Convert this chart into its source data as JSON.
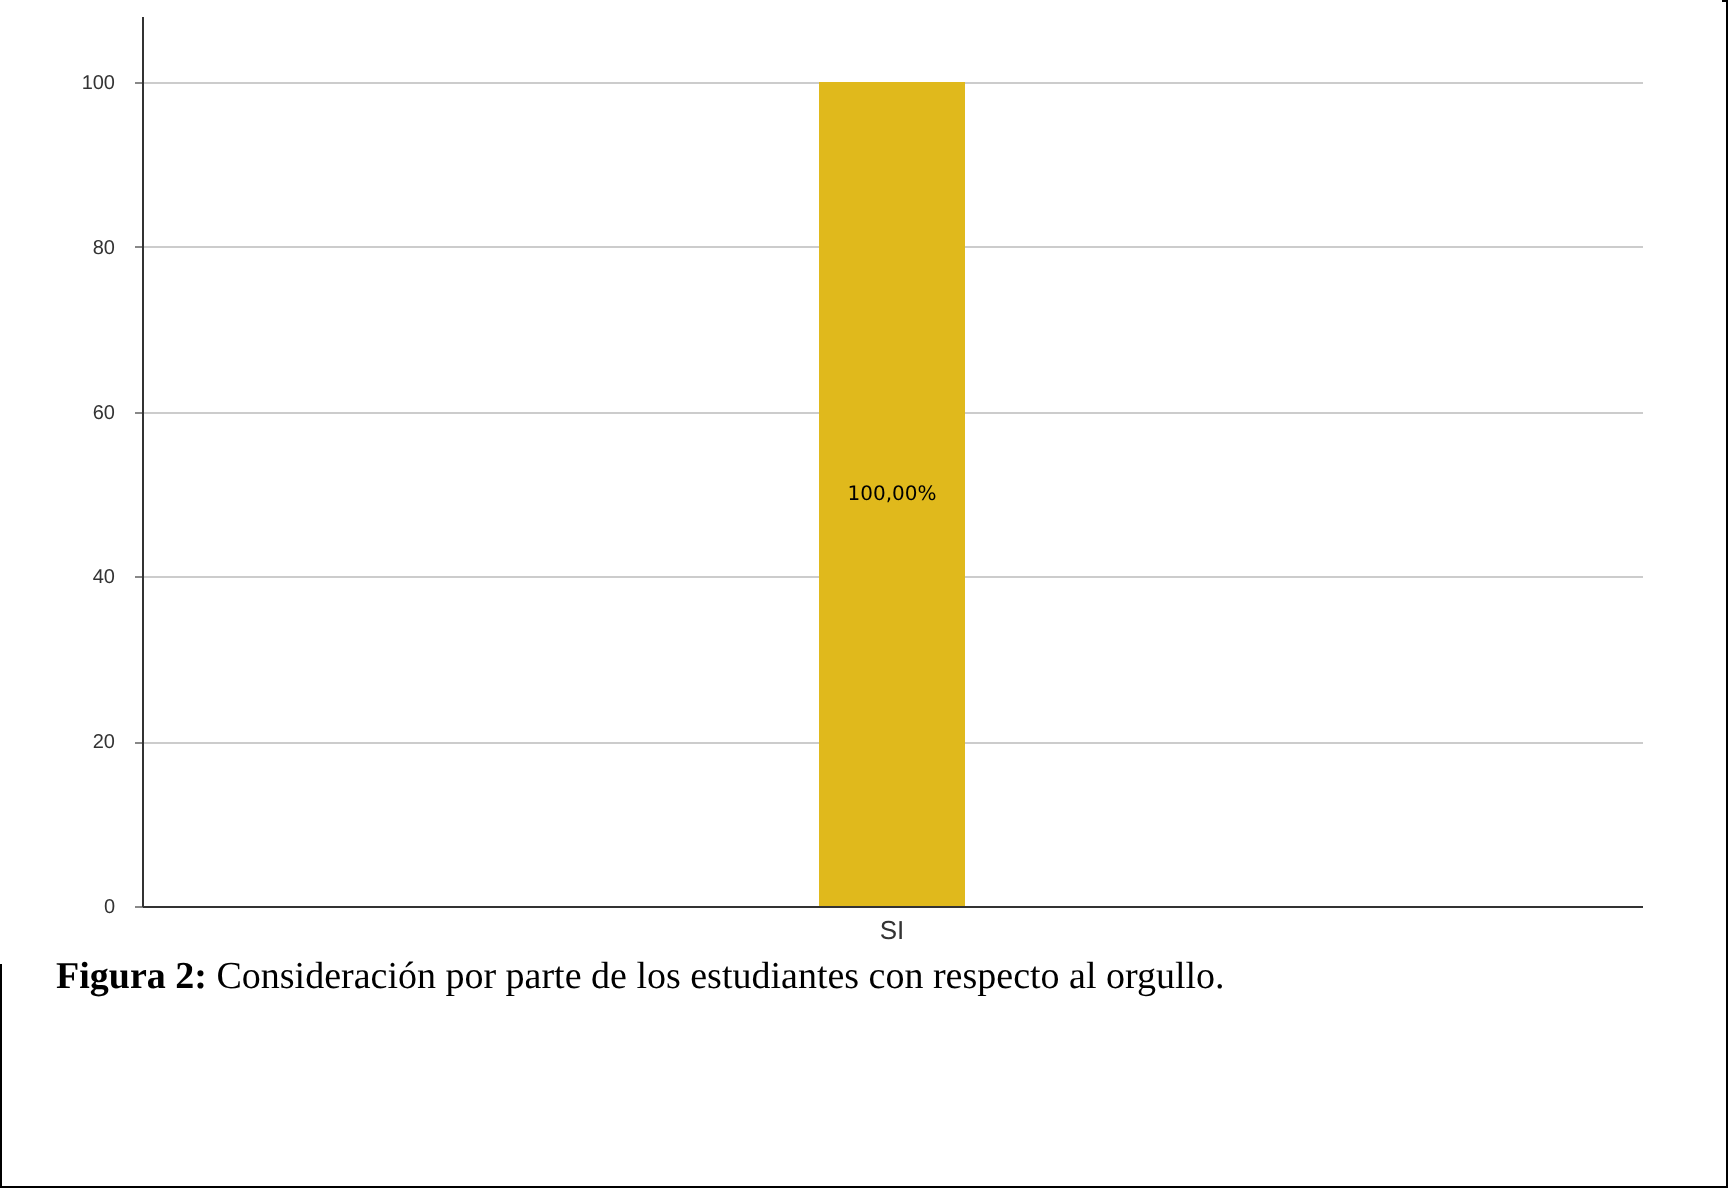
{
  "chart_data": {
    "type": "bar",
    "categories": [
      "SI"
    ],
    "values": [
      100
    ],
    "color": "#e0b91c",
    "value_labels": [
      "100,00%"
    ],
    "ylim": [
      0,
      108
    ],
    "yticks": [
      0,
      20,
      40,
      60,
      80,
      100
    ],
    "grid": "y",
    "annotations": [
      "Figura 2: Consideración por parte de los estudiantes con respecto al orgullo."
    ]
  }
}
